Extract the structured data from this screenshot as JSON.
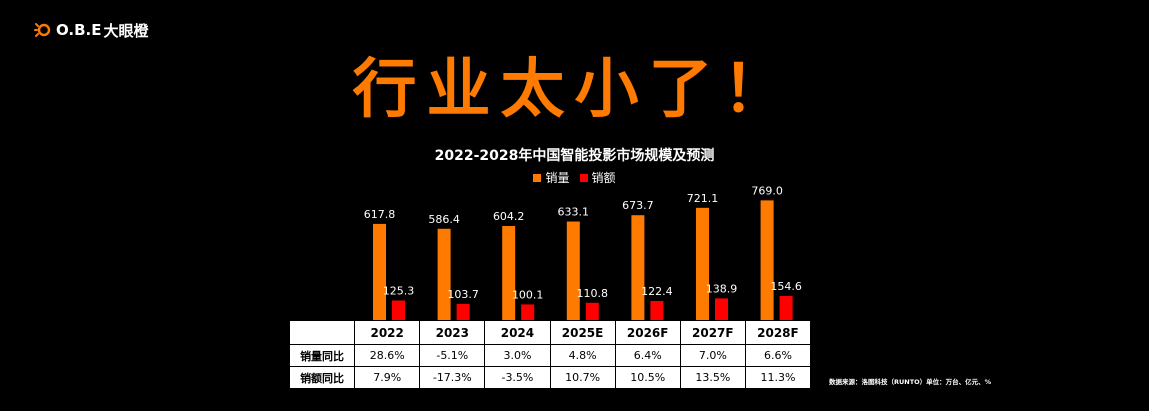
{
  "brand": {
    "logo_text": "O.B.E",
    "logo_cn": "大眼橙",
    "accent": "#FF7A00"
  },
  "headline": "行业太小了！",
  "chart_data": {
    "type": "bar",
    "title": "2022-2028年中国智能投影市场规模及预测",
    "categories": [
      "2022",
      "2023",
      "2024",
      "2025E",
      "2026F",
      "2027F",
      "2028F"
    ],
    "series": [
      {
        "name": "销量",
        "color": "#FF7A00",
        "values": [
          617.8,
          586.4,
          604.2,
          633.1,
          673.7,
          721.1,
          769.0
        ],
        "labels": [
          "617.8",
          "586.4",
          "604.2",
          "633.1",
          "673.7",
          "721.1",
          "769.0"
        ]
      },
      {
        "name": "销额",
        "color": "#FF0000",
        "values": [
          125.3,
          103.7,
          100.1,
          110.8,
          122.4,
          138.9,
          154.6
        ],
        "labels": [
          "125.3",
          "103.7",
          "100.1",
          "110.8",
          "122.4",
          "138.9",
          "154.6"
        ]
      }
    ],
    "ylim": [
      0,
      900
    ],
    "legend_position": "top-center",
    "grid": false
  },
  "table": {
    "headers": [
      "",
      "2022",
      "2023",
      "2024",
      "2025E",
      "2026F",
      "2027F",
      "2028F"
    ],
    "rows": [
      {
        "label": "销量同比",
        "cells": [
          "28.6%",
          "-5.1%",
          "3.0%",
          "4.8%",
          "6.4%",
          "7.0%",
          "6.6%"
        ]
      },
      {
        "label": "销额同比",
        "cells": [
          "7.9%",
          "-17.3%",
          "-3.5%",
          "10.7%",
          "10.5%",
          "13.5%",
          "11.3%"
        ]
      }
    ]
  },
  "source": "数据来源：洛图科技（RUNTO）单位：万台、亿元、%"
}
